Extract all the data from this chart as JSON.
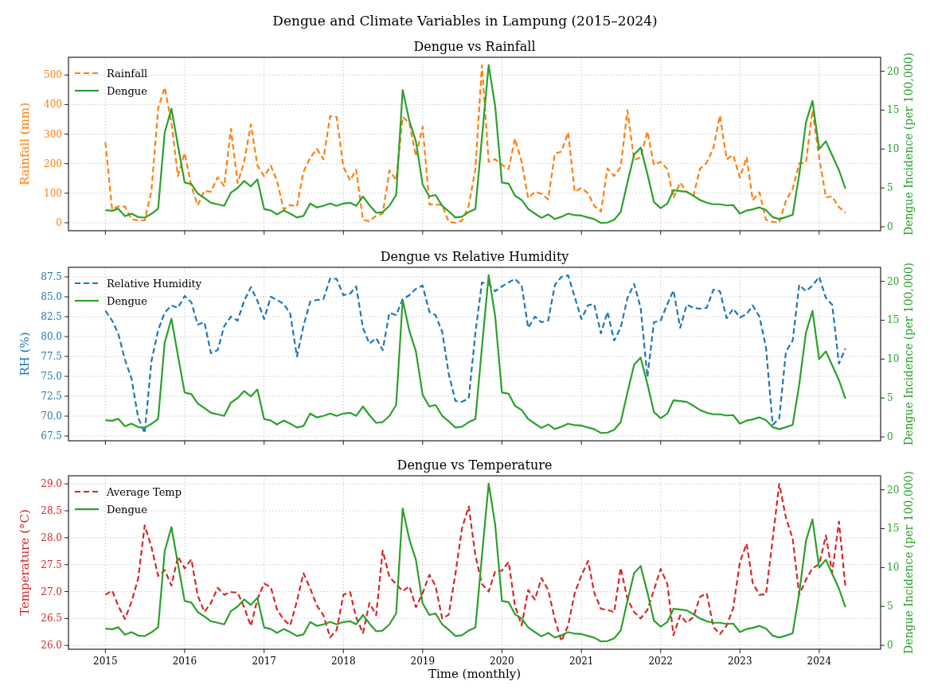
{
  "chart_data": [
    {
      "type": "line",
      "title": "Dengue and Climate Variables in Lampung (2015–2024)",
      "subtitle": "Dengue vs Rainfall",
      "ylabel": "Rainfall (mm)",
      "y2label": "Dengue Incidence (per 100,000)",
      "x": [
        "2015-01",
        "2015-02",
        "2015-03",
        "2015-04",
        "2015-05",
        "2015-06",
        "2015-07",
        "2015-08",
        "2015-09",
        "2015-10",
        "2015-11",
        "2015-12",
        "2016-01",
        "2016-02",
        "2016-03",
        "2016-04",
        "2016-05",
        "2016-06",
        "2016-07",
        "2016-08",
        "2016-09",
        "2016-10",
        "2016-11",
        "2016-12",
        "2017-01",
        "2017-02",
        "2017-03",
        "2017-04",
        "2017-05",
        "2017-06",
        "2017-07",
        "2017-08",
        "2017-09",
        "2017-10",
        "2017-11",
        "2017-12",
        "2018-01",
        "2018-02",
        "2018-03",
        "2018-04",
        "2018-05",
        "2018-06",
        "2018-07",
        "2018-08",
        "2018-09",
        "2018-10",
        "2018-11",
        "2018-12",
        "2019-01",
        "2019-02",
        "2019-03",
        "2019-04",
        "2019-05",
        "2019-06",
        "2019-07",
        "2019-08",
        "2019-09",
        "2019-10",
        "2019-11",
        "2019-12",
        "2020-01",
        "2020-02",
        "2020-03",
        "2020-04",
        "2020-05",
        "2020-06",
        "2020-07",
        "2020-08",
        "2020-09",
        "2020-10",
        "2020-11",
        "2020-12",
        "2021-01",
        "2021-02",
        "2021-03",
        "2021-04",
        "2021-05",
        "2021-06",
        "2021-07",
        "2021-08",
        "2021-09",
        "2021-10",
        "2021-11",
        "2021-12",
        "2022-01",
        "2022-02",
        "2022-03",
        "2022-04",
        "2022-05",
        "2022-06",
        "2022-07",
        "2022-08",
        "2022-09",
        "2022-10",
        "2022-11",
        "2022-12",
        "2023-01",
        "2023-02",
        "2023-03",
        "2023-04",
        "2023-05",
        "2023-06",
        "2023-07",
        "2023-08",
        "2023-09",
        "2023-10",
        "2023-11",
        "2023-12",
        "2024-01",
        "2024-02",
        "2024-03",
        "2024-04",
        "2024-05"
      ],
      "series": [
        {
          "name": "Rainfall",
          "color": "#ff7f0e",
          "line_style": "dashed",
          "values": [
            272,
            45,
            55,
            55,
            12,
            8,
            8,
            108,
            387,
            458,
            340,
            158,
            236,
            124,
            59,
            108,
            105,
            154,
            124,
            318,
            134,
            206,
            333,
            194,
            157,
            193,
            143,
            45,
            60,
            55,
            172,
            220,
            250,
            215,
            361,
            358,
            189,
            143,
            180,
            10,
            5,
            24,
            31,
            177,
            145,
            358,
            337,
            225,
            325,
            62,
            62,
            60,
            2,
            0,
            7,
            57,
            182,
            533,
            206,
            215,
            196,
            182,
            285,
            206,
            83,
            105,
            98,
            79,
            234,
            241,
            306,
            105,
            118,
            100,
            57,
            38,
            184,
            158,
            189,
            380,
            212,
            222,
            309,
            196,
            206,
            182,
            84,
            136,
            105,
            91,
            182,
            203,
            253,
            363,
            215,
            229,
            153,
            222,
            76,
            103,
            10,
            3,
            0,
            75,
            115,
            201,
            203,
            380,
            220,
            86,
            89,
            53,
            33
          ]
        },
        {
          "name": "Dengue",
          "color": "#2ca02c",
          "line_style": "solid",
          "axis": "y2",
          "values": [
            2.15,
            2.07,
            2.33,
            1.37,
            1.7,
            1.26,
            1.19,
            1.67,
            2.33,
            12.1,
            15.2,
            10.5,
            5.7,
            5.5,
            4.3,
            3.7,
            3.1,
            2.9,
            2.7,
            4.4,
            5.0,
            5.9,
            5.2,
            6.1,
            2.3,
            2.1,
            1.6,
            2.1,
            1.7,
            1.2,
            1.4,
            3.0,
            2.5,
            2.7,
            3.0,
            2.7,
            3.0,
            3.1,
            2.7,
            3.9,
            2.8,
            1.8,
            1.9,
            2.7,
            4.1,
            17.6,
            13.6,
            11.0,
            5.4,
            3.9,
            4.1,
            2.7,
            2.0,
            1.2,
            1.3,
            1.9,
            2.3,
            11.5,
            20.8,
            15.5,
            5.7,
            5.55,
            4.0,
            3.45,
            2.3,
            1.7,
            1.15,
            1.6,
            1.0,
            1.3,
            1.7,
            1.5,
            1.45,
            1.2,
            1.0,
            0.5,
            0.55,
            0.9,
            1.9,
            5.7,
            9.3,
            10.2,
            6.8,
            3.2,
            2.4,
            3.0,
            4.7,
            4.6,
            4.5,
            4.0,
            3.45,
            3.1,
            2.9,
            2.9,
            2.75,
            2.8,
            1.7,
            2.1,
            2.25,
            2.5,
            2.15,
            1.25,
            1.0,
            1.25,
            1.55,
            6.7,
            13.4,
            16.2,
            10.0,
            11.0,
            9.2,
            7.3,
            4.9
          ]
        }
      ],
      "xlim": [
        "2014-07-15",
        "2024-10-10"
      ],
      "xticks": [
        "2015",
        "2016",
        "2017",
        "2018",
        "2019",
        "2020",
        "2021",
        "2022",
        "2023",
        "2024"
      ],
      "ylim": [
        -27,
        560
      ],
      "yticks": [
        0,
        100,
        200,
        300,
        400,
        500
      ],
      "y2lim": [
        -0.5,
        21.8
      ],
      "y2ticks": [
        0,
        5,
        10,
        15,
        20
      ],
      "grid": true,
      "legend": "top left",
      "tick_labels": "y"
    },
    {
      "type": "line",
      "title": "Dengue vs Relative Humidity",
      "ylabel": "RH (%)",
      "y2label": "Dengue Incidence (per 100,000)",
      "x": [
        "2015-01",
        "2015-02",
        "2015-03",
        "2015-04",
        "2015-05",
        "2015-06",
        "2015-07",
        "2015-08",
        "2015-09",
        "2015-10",
        "2015-11",
        "2015-12",
        "2016-01",
        "2016-02",
        "2016-03",
        "2016-04",
        "2016-05",
        "2016-06",
        "2016-07",
        "2016-08",
        "2016-09",
        "2016-10",
        "2016-11",
        "2016-12",
        "2017-01",
        "2017-02",
        "2017-03",
        "2017-04",
        "2017-05",
        "2017-06",
        "2017-07",
        "2017-08",
        "2017-09",
        "2017-10",
        "2017-11",
        "2017-12",
        "2018-01",
        "2018-02",
        "2018-03",
        "2018-04",
        "2018-05",
        "2018-06",
        "2018-07",
        "2018-08",
        "2018-09",
        "2018-10",
        "2018-11",
        "2018-12",
        "2019-01",
        "2019-02",
        "2019-03",
        "2019-04",
        "2019-05",
        "2019-06",
        "2019-07",
        "2019-08",
        "2019-09",
        "2019-10",
        "2019-11",
        "2019-12",
        "2020-01",
        "2020-02",
        "2020-03",
        "2020-04",
        "2020-05",
        "2020-06",
        "2020-07",
        "2020-08",
        "2020-09",
        "2020-10",
        "2020-11",
        "2020-12",
        "2021-01",
        "2021-02",
        "2021-03",
        "2021-04",
        "2021-05",
        "2021-06",
        "2021-07",
        "2021-08",
        "2021-09",
        "2021-10",
        "2021-11",
        "2021-12",
        "2022-01",
        "2022-02",
        "2022-03",
        "2022-04",
        "2022-05",
        "2022-06",
        "2022-07",
        "2022-08",
        "2022-09",
        "2022-10",
        "2022-11",
        "2022-12",
        "2023-01",
        "2023-02",
        "2023-03",
        "2023-04",
        "2023-05",
        "2023-06",
        "2023-07",
        "2023-08",
        "2023-09",
        "2023-10",
        "2023-11",
        "2023-12",
        "2024-01",
        "2024-02",
        "2024-03",
        "2024-04",
        "2024-05"
      ],
      "series": [
        {
          "name": "Relative Humidity",
          "color": "#1f77b4",
          "line_style": "dashed",
          "values": [
            83.25,
            82.0,
            80.4,
            77.1,
            74.75,
            69.8,
            67.85,
            76.9,
            80.8,
            83.0,
            83.9,
            83.6,
            85.1,
            84.3,
            81.5,
            81.8,
            77.9,
            78.3,
            81.3,
            82.5,
            82.0,
            84.5,
            86.2,
            84.5,
            82.2,
            85.0,
            84.6,
            84.1,
            82.9,
            77.5,
            81.3,
            84.4,
            84.6,
            84.7,
            87.3,
            87.25,
            85.2,
            85.4,
            86.3,
            81.1,
            79.1,
            79.8,
            78.3,
            83.0,
            82.7,
            84.7,
            85.2,
            86.0,
            86.4,
            83.1,
            82.7,
            80.6,
            75.3,
            71.9,
            71.8,
            72.2,
            80.5,
            86.8,
            86.6,
            85.7,
            86.3,
            86.8,
            87.25,
            86.4,
            81.1,
            82.5,
            81.8,
            82.0,
            86.5,
            87.5,
            87.7,
            85.0,
            82.2,
            83.95,
            84.05,
            80.4,
            83.1,
            79.5,
            81.1,
            84.85,
            86.6,
            83.6,
            74.9,
            81.8,
            82.0,
            84.1,
            85.8,
            81.1,
            84.0,
            83.6,
            83.5,
            83.6,
            85.9,
            85.7,
            82.3,
            83.5,
            82.4,
            82.8,
            83.9,
            82.5,
            78.65,
            68.9,
            69.7,
            78.1,
            79.5,
            86.5,
            85.7,
            86.4,
            87.5,
            84.85,
            84.0,
            76.6,
            78.5
          ]
        },
        {
          "name": "Dengue",
          "color": "#2ca02c",
          "line_style": "solid",
          "axis": "y2",
          "values": [
            2.15,
            2.07,
            2.33,
            1.37,
            1.7,
            1.26,
            1.19,
            1.67,
            2.33,
            12.1,
            15.2,
            10.5,
            5.7,
            5.5,
            4.3,
            3.7,
            3.1,
            2.9,
            2.7,
            4.4,
            5.0,
            5.9,
            5.2,
            6.1,
            2.3,
            2.1,
            1.6,
            2.1,
            1.7,
            1.2,
            1.4,
            3.0,
            2.5,
            2.7,
            3.0,
            2.7,
            3.0,
            3.1,
            2.7,
            3.9,
            2.8,
            1.8,
            1.9,
            2.7,
            4.1,
            17.6,
            13.6,
            11.0,
            5.4,
            3.9,
            4.1,
            2.7,
            2.0,
            1.2,
            1.3,
            1.9,
            2.3,
            11.5,
            20.8,
            15.5,
            5.7,
            5.55,
            4.0,
            3.45,
            2.3,
            1.7,
            1.15,
            1.6,
            1.0,
            1.3,
            1.7,
            1.5,
            1.45,
            1.2,
            1.0,
            0.5,
            0.55,
            0.9,
            1.9,
            5.7,
            9.3,
            10.2,
            6.8,
            3.2,
            2.4,
            3.0,
            4.7,
            4.6,
            4.5,
            4.0,
            3.45,
            3.1,
            2.9,
            2.9,
            2.75,
            2.8,
            1.7,
            2.1,
            2.25,
            2.5,
            2.15,
            1.25,
            1.0,
            1.25,
            1.55,
            6.7,
            13.4,
            16.2,
            10.0,
            11.0,
            9.2,
            7.3,
            4.9
          ]
        }
      ],
      "xlim": [
        "2014-07-15",
        "2024-10-10"
      ],
      "xticks": [
        "2015",
        "2016",
        "2017",
        "2018",
        "2019",
        "2020",
        "2021",
        "2022",
        "2023",
        "2024"
      ],
      "ylim": [
        66.9,
        88.7
      ],
      "yticks": [
        {
          "value": 67.5,
          "label": "67.5"
        },
        {
          "value": 70,
          "label": "70.0"
        },
        {
          "value": 72.5,
          "label": "72.5"
        },
        {
          "value": 75,
          "label": "75.0"
        },
        {
          "value": 77.5,
          "label": "77.5"
        },
        {
          "value": 80,
          "label": "80.0"
        },
        {
          "value": 82.5,
          "label": "82.5"
        },
        {
          "value": 85,
          "label": "85.0"
        },
        {
          "value": 87.5,
          "label": "87.5"
        }
      ],
      "y2lim": [
        -0.5,
        21.8
      ],
      "y2ticks": [
        0,
        5,
        10,
        15,
        20
      ],
      "grid": true,
      "legend": "top left",
      "tick_labels": "y"
    },
    {
      "type": "line",
      "title": "Dengue vs Temperature",
      "xlabel": "Time (monthly)",
      "ylabel": "Temperature (°C)",
      "y2label": "Dengue Incidence (per 100,000)",
      "x": [
        "2015-01",
        "2015-02",
        "2015-03",
        "2015-04",
        "2015-05",
        "2015-06",
        "2015-07",
        "2015-08",
        "2015-09",
        "2015-10",
        "2015-11",
        "2015-12",
        "2016-01",
        "2016-02",
        "2016-03",
        "2016-04",
        "2016-05",
        "2016-06",
        "2016-07",
        "2016-08",
        "2016-09",
        "2016-10",
        "2016-11",
        "2016-12",
        "2017-01",
        "2017-02",
        "2017-03",
        "2017-04",
        "2017-05",
        "2017-06",
        "2017-07",
        "2017-08",
        "2017-09",
        "2017-10",
        "2017-11",
        "2017-12",
        "2018-01",
        "2018-02",
        "2018-03",
        "2018-04",
        "2018-05",
        "2018-06",
        "2018-07",
        "2018-08",
        "2018-09",
        "2018-10",
        "2018-11",
        "2018-12",
        "2019-01",
        "2019-02",
        "2019-03",
        "2019-04",
        "2019-05",
        "2019-06",
        "2019-07",
        "2019-08",
        "2019-09",
        "2019-10",
        "2019-11",
        "2019-12",
        "2020-01",
        "2020-02",
        "2020-03",
        "2020-04",
        "2020-05",
        "2020-06",
        "2020-07",
        "2020-08",
        "2020-09",
        "2020-10",
        "2020-11",
        "2020-12",
        "2021-01",
        "2021-02",
        "2021-03",
        "2021-04",
        "2021-05",
        "2021-06",
        "2021-07",
        "2021-08",
        "2021-09",
        "2021-10",
        "2021-11",
        "2021-12",
        "2022-01",
        "2022-02",
        "2022-03",
        "2022-04",
        "2022-05",
        "2022-06",
        "2022-07",
        "2022-08",
        "2022-09",
        "2022-10",
        "2022-11",
        "2022-12",
        "2023-01",
        "2023-02",
        "2023-03",
        "2023-04",
        "2023-05",
        "2023-06",
        "2023-07",
        "2023-08",
        "2023-09",
        "2023-10",
        "2023-11",
        "2023-12",
        "2024-01",
        "2024-02",
        "2024-03",
        "2024-04",
        "2024-05"
      ],
      "series": [
        {
          "name": "Average Temp",
          "color": "#d62728",
          "line_style": "dashed",
          "values": [
            26.94,
            27.02,
            26.74,
            26.49,
            26.81,
            27.24,
            28.23,
            27.83,
            27.29,
            27.4,
            27.11,
            27.65,
            27.43,
            27.6,
            26.93,
            26.62,
            26.79,
            27.07,
            26.94,
            26.99,
            26.98,
            26.71,
            26.36,
            26.86,
            27.15,
            27.08,
            26.67,
            26.48,
            26.37,
            26.82,
            27.34,
            27.06,
            26.74,
            26.56,
            26.15,
            26.29,
            26.94,
            26.99,
            26.52,
            26.23,
            26.79,
            26.56,
            27.76,
            27.27,
            27.14,
            27.01,
            27.1,
            26.71,
            26.97,
            27.31,
            27.11,
            26.5,
            26.57,
            27.33,
            28.17,
            28.58,
            27.67,
            27.14,
            27.0,
            27.38,
            27.39,
            27.55,
            26.74,
            26.37,
            27.03,
            26.85,
            27.25,
            27.03,
            26.48,
            26.08,
            26.37,
            26.97,
            27.3,
            27.57,
            26.98,
            26.68,
            26.66,
            26.62,
            27.44,
            26.86,
            26.62,
            26.5,
            26.66,
            27.03,
            27.42,
            27.14,
            26.19,
            26.56,
            26.42,
            26.53,
            26.9,
            26.97,
            26.34,
            26.21,
            26.37,
            26.69,
            27.55,
            27.89,
            27.16,
            26.94,
            26.95,
            27.98,
            29.0,
            28.37,
            27.98,
            26.94,
            27.22,
            27.43,
            27.51,
            28.04,
            27.35,
            28.3,
            27.08
          ]
        },
        {
          "name": "Dengue",
          "color": "#2ca02c",
          "line_style": "solid",
          "axis": "y2",
          "values": [
            2.15,
            2.07,
            2.33,
            1.37,
            1.7,
            1.26,
            1.19,
            1.67,
            2.33,
            12.1,
            15.2,
            10.5,
            5.7,
            5.5,
            4.3,
            3.7,
            3.1,
            2.9,
            2.7,
            4.4,
            5.0,
            5.9,
            5.2,
            6.1,
            2.3,
            2.1,
            1.6,
            2.1,
            1.7,
            1.2,
            1.4,
            3.0,
            2.5,
            2.7,
            3.0,
            2.7,
            3.0,
            3.1,
            2.7,
            3.9,
            2.8,
            1.8,
            1.9,
            2.7,
            4.1,
            17.6,
            13.6,
            11.0,
            5.4,
            3.9,
            4.1,
            2.7,
            2.0,
            1.2,
            1.3,
            1.9,
            2.3,
            11.5,
            20.8,
            15.5,
            5.7,
            5.55,
            4.0,
            3.45,
            2.3,
            1.7,
            1.15,
            1.6,
            1.0,
            1.3,
            1.7,
            1.5,
            1.45,
            1.2,
            1.0,
            0.5,
            0.55,
            0.9,
            1.9,
            5.7,
            9.3,
            10.2,
            6.8,
            3.2,
            2.4,
            3.0,
            4.7,
            4.6,
            4.5,
            4.0,
            3.45,
            3.1,
            2.9,
            2.9,
            2.75,
            2.8,
            1.7,
            2.1,
            2.25,
            2.5,
            2.15,
            1.25,
            1.0,
            1.25,
            1.55,
            6.7,
            13.4,
            16.2,
            10.0,
            11.0,
            9.2,
            7.3,
            4.9
          ]
        }
      ],
      "xlim": [
        "2014-07-15",
        "2024-10-10"
      ],
      "xticks": [
        "2015",
        "2016",
        "2017",
        "2018",
        "2019",
        "2020",
        "2021",
        "2022",
        "2023",
        "2024"
      ],
      "ylim": [
        25.93,
        29.15
      ],
      "yticks": [
        {
          "value": 26,
          "label": "26.0"
        },
        {
          "value": 26.5,
          "label": "26.5"
        },
        {
          "value": 27,
          "label": "27.0"
        },
        {
          "value": 27.5,
          "label": "27.5"
        },
        {
          "value": 28,
          "label": "28.0"
        },
        {
          "value": 28.5,
          "label": "28.5"
        },
        {
          "value": 29,
          "label": "29.0"
        }
      ],
      "y2lim": [
        -0.5,
        21.8
      ],
      "y2ticks": [
        0,
        5,
        10,
        15,
        20
      ],
      "grid": true,
      "legend": "top left"
    }
  ]
}
